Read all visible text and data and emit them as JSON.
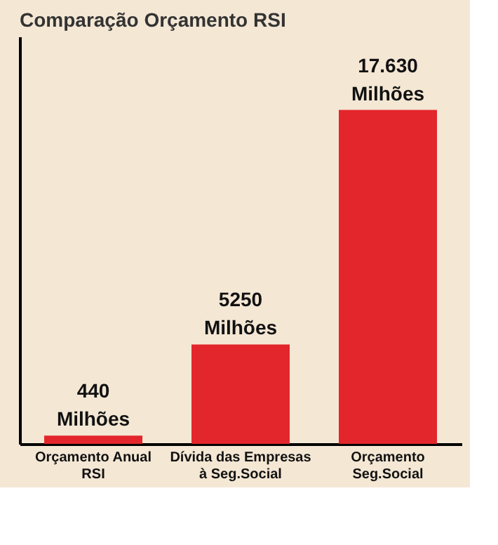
{
  "chart_data": {
    "type": "bar",
    "title": "Comparação Orçamento RSI",
    "categories": [
      "Orçamento Anual\nRSI",
      "Dívida das Empresas\nà Seg.Social",
      "Orçamento\nSeg.Social"
    ],
    "values": [
      440,
      5250,
      17630
    ],
    "value_labels": [
      "440\nMilhões",
      "5250\nMilhões",
      "17.630\nMilhões"
    ],
    "color": "#e3262c",
    "grid": false
  }
}
